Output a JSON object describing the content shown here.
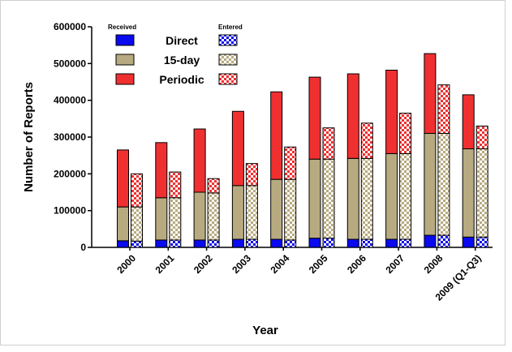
{
  "chart_data": {
    "type": "grouped-stacked-bar",
    "y_label": "Number of Reports",
    "x_label": "Year",
    "groups": [
      "Received",
      "Entered"
    ],
    "categories": [
      "2000",
      "2001",
      "2002",
      "2003",
      "2004",
      "2005",
      "2006",
      "2007",
      "2008",
      "2009 (Q1-Q3)"
    ],
    "series": [
      {
        "name": "Direct",
        "color": "#0a0af0",
        "values": [
          18000,
          20000,
          20000,
          22000,
          22000,
          25000,
          22000,
          22000,
          33000,
          28000
        ],
        "entered_values": [
          17000,
          20000,
          20000,
          22000,
          20000,
          25000,
          22000,
          22000,
          33000,
          28000
        ]
      },
      {
        "name": "15-day",
        "color": "#b8aa80",
        "values": [
          92000,
          115000,
          130000,
          146000,
          163000,
          215000,
          220000,
          233000,
          277000,
          240000
        ],
        "entered_values": [
          93000,
          115000,
          128000,
          146000,
          165000,
          215000,
          220000,
          233000,
          277000,
          240000
        ]
      },
      {
        "name": "Periodic",
        "color": "#f03030",
        "values": [
          155000,
          150000,
          172000,
          202000,
          238000,
          223000,
          230000,
          227000,
          217000,
          147000
        ],
        "entered_values": [
          90000,
          70000,
          39000,
          60000,
          88000,
          85000,
          96000,
          110000,
          132000,
          62000
        ]
      }
    ],
    "ylim": [
      0,
      600000
    ],
    "yticks": [
      0,
      100000,
      200000,
      300000,
      400000,
      500000,
      600000
    ]
  }
}
